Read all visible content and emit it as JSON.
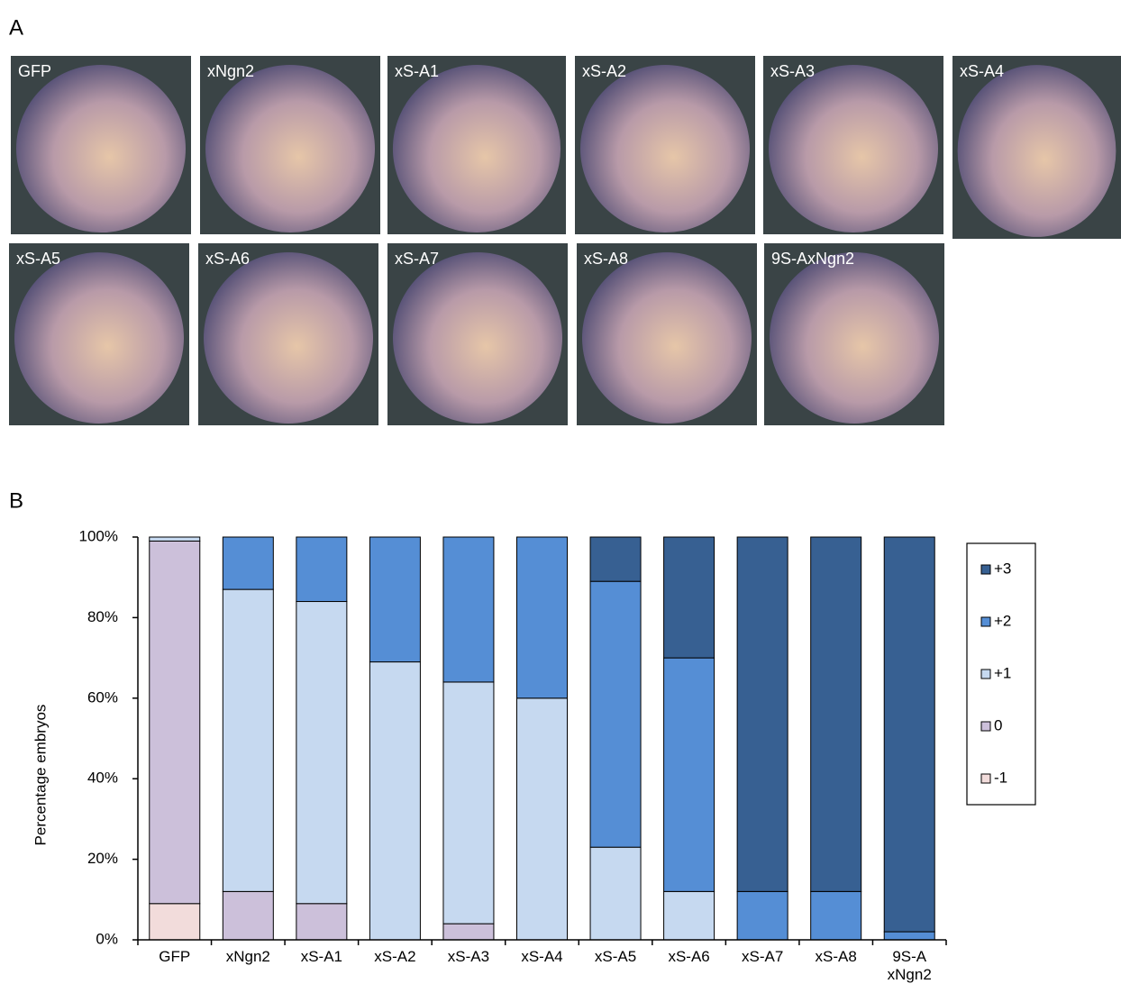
{
  "panels": {
    "a": {
      "label": "A",
      "images": [
        "GFP",
        "xNgn2",
        "xS-A1",
        "xS-A2",
        "xS-A3",
        "xS-A4",
        "xS-A5",
        "xS-A6",
        "xS-A7",
        "xS-A8",
        "9S-AxNgn2"
      ]
    },
    "b": {
      "label": "B"
    }
  },
  "chart_data": {
    "type": "stacked-bar",
    "categories": [
      "GFP",
      "xNgn2",
      "xS-A1",
      "xS-A2",
      "xS-A3",
      "xS-A4",
      "xS-A5",
      "xS-A6",
      "xS-A7",
      "xS-A8",
      "9S-A\nxNgn2"
    ],
    "y_label": "Percentage embryos",
    "ylim": [
      0,
      100
    ],
    "yticks": [
      {
        "value": 0,
        "label": "0%"
      },
      {
        "value": 20,
        "label": "20%"
      },
      {
        "value": 40,
        "label": "40%"
      },
      {
        "value": 60,
        "label": "60%"
      },
      {
        "value": 80,
        "label": "80%"
      },
      {
        "value": 100,
        "label": "100%"
      }
    ],
    "legend": "right",
    "series": [
      {
        "name": "-1",
        "color": "#f2dcdb",
        "values": [
          9,
          0,
          0,
          0,
          0,
          0,
          0,
          0,
          0,
          0,
          0
        ]
      },
      {
        "name": "0",
        "color": "#ccc0da",
        "values": [
          90,
          12,
          9,
          0,
          4,
          0,
          0,
          0,
          0,
          0,
          0
        ]
      },
      {
        "name": "+1",
        "color": "#c6d9f0",
        "values": [
          1,
          75,
          75,
          69,
          60,
          60,
          23,
          12,
          0,
          0,
          0
        ]
      },
      {
        "name": "+2",
        "color": "#558ed5",
        "values": [
          0,
          13,
          16,
          31,
          36,
          40,
          66,
          58,
          12,
          12,
          2
        ]
      },
      {
        "name": "+3",
        "color": "#376092",
        "values": [
          0,
          0,
          0,
          0,
          0,
          0,
          11,
          30,
          88,
          88,
          98
        ]
      }
    ]
  }
}
